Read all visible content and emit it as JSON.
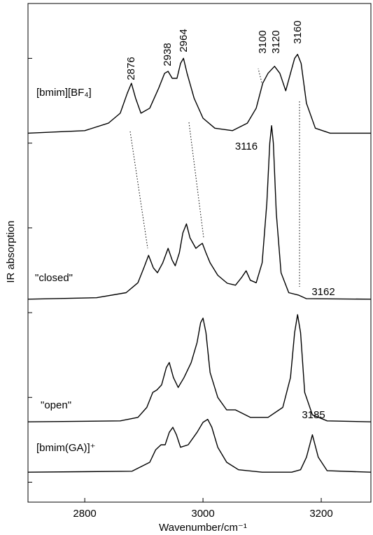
{
  "chart_data": {
    "type": "line",
    "x_label": "Wavenumber/cm⁻¹",
    "y_label": "IR absorption",
    "xlim": [
      2704,
      3284
    ],
    "xticks": [
      2800,
      3000,
      3200
    ],
    "ylim": [
      0,
      100
    ],
    "yticks": [
      4,
      21,
      38,
      55,
      72,
      89
    ],
    "color": "#000000",
    "series": [
      {
        "name": "[bmim][BF₄]",
        "x": [
          2704,
          2800,
          2840,
          2860,
          2872,
          2879,
          2886,
          2895,
          2910,
          2925,
          2935,
          2941,
          2948,
          2956,
          2962,
          2967,
          2973,
          2985,
          3000,
          3020,
          3050,
          3075,
          3090,
          3101,
          3110,
          3121,
          3130,
          3140,
          3148,
          3155,
          3160,
          3166,
          3175,
          3190,
          3215,
          3284
        ],
        "values": [
          74,
          74.5,
          76,
          78,
          82,
          84,
          81,
          78,
          79,
          83,
          86,
          86.4,
          85,
          85,
          88,
          89,
          86,
          81,
          77,
          75,
          74.5,
          76,
          79,
          84,
          86,
          87.4,
          86,
          82.5,
          86,
          89,
          89.8,
          88,
          80,
          75,
          74,
          74
        ]
      },
      {
        "name": "\"closed\"",
        "x": [
          2704,
          2820,
          2870,
          2890,
          2900,
          2908,
          2916,
          2923,
          2932,
          2941,
          2948,
          2953,
          2960,
          2966,
          2972,
          2978,
          2988,
          2994,
          2999,
          3005,
          3012,
          3025,
          3041,
          3055,
          3065,
          3073,
          3080,
          3090,
          3100,
          3108,
          3113,
          3116,
          3119,
          3124,
          3132,
          3145,
          3162,
          3175,
          3284
        ],
        "values": [
          40.7,
          41,
          42,
          44,
          47,
          49.5,
          47,
          46,
          48,
          50.9,
          48.5,
          47.4,
          50,
          54,
          55.8,
          53,
          50.9,
          51.5,
          51.9,
          50,
          48,
          45.5,
          43.9,
          43.5,
          45,
          46.4,
          44.5,
          44,
          48,
          60,
          72,
          75.5,
          72,
          58,
          46,
          42,
          41.5,
          40.8,
          40.7
        ]
      },
      {
        "name": "\"open\"",
        "x": [
          2704,
          2860,
          2890,
          2905,
          2915,
          2922,
          2930,
          2938,
          2943,
          2950,
          2958,
          2968,
          2980,
          2990,
          2996,
          3000,
          3005,
          3012,
          3025,
          3040,
          3055,
          3080,
          3110,
          3135,
          3148,
          3155,
          3160,
          3165,
          3172,
          3185,
          3210,
          3284
        ],
        "values": [
          16.1,
          16.3,
          17,
          19,
          22,
          22.5,
          23.5,
          27,
          28,
          25,
          23,
          25,
          28,
          32,
          36,
          36.9,
          34,
          26,
          21,
          18.5,
          18.5,
          17,
          17,
          19,
          25,
          34,
          37.6,
          34,
          22,
          17.5,
          16.3,
          16.1
        ]
      },
      {
        "name": "[bmim(GA)]⁺",
        "x": [
          2704,
          2880,
          2910,
          2920,
          2929,
          2936,
          2943,
          2949,
          2955,
          2962,
          2975,
          2990,
          3000,
          3008,
          3015,
          3025,
          3040,
          3060,
          3100,
          3150,
          3165,
          3175,
          3185,
          3195,
          3210,
          3284
        ],
        "values": [
          6,
          6.2,
          8,
          10.5,
          11.5,
          11.5,
          14,
          15,
          13.5,
          11,
          11.5,
          14,
          16,
          16.6,
          15,
          11,
          8,
          6.5,
          6,
          6,
          6.5,
          9,
          13.5,
          9,
          6.3,
          6
        ]
      }
    ],
    "annotations": [
      "2876",
      "2938",
      "2964",
      "3100",
      "3120",
      "3160",
      "3116",
      "3162",
      "3185"
    ]
  }
}
